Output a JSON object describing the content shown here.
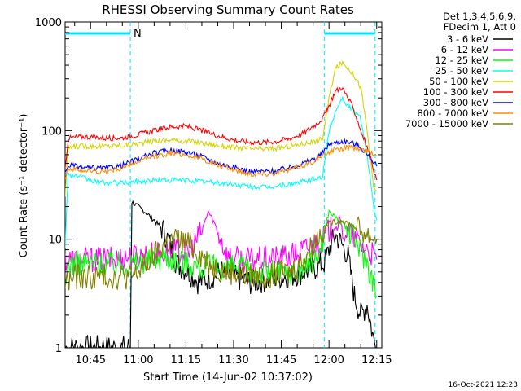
{
  "chart_data": {
    "type": "line",
    "title": "RHESSI Observing Summary Count Rates",
    "xlabel": "Start Time (14-Jun-02 10:37:02)",
    "ylabel": "Count Rate (s⁻¹ detector⁻¹)",
    "y_scale": "log",
    "ylim": [
      1,
      1000
    ],
    "xlim_minutes": [
      637.0,
      736.6
    ],
    "x_ticks": [
      {
        "label": "10:45",
        "minutes": 645
      },
      {
        "label": "11:00",
        "minutes": 660
      },
      {
        "label": "11:15",
        "minutes": 675
      },
      {
        "label": "11:30",
        "minutes": 690
      },
      {
        "label": "11:45",
        "minutes": 705
      },
      {
        "label": "12:00",
        "minutes": 720
      },
      {
        "label": "12:15",
        "minutes": 735
      }
    ],
    "y_ticks": [
      {
        "label": "1",
        "value": 1
      },
      {
        "label": "10",
        "value": 10
      },
      {
        "label": "100",
        "value": 100
      },
      {
        "label": "1000",
        "value": 1000
      }
    ],
    "legend_header": [
      "Det 1,3,4,5,6,9,",
      "FDecim 1, Att 0"
    ],
    "legend_placement": "right",
    "flag_bar": {
      "color": "#00e5ff",
      "segments": [
        [
          637.0,
          657.5
        ],
        [
          718.5,
          734.5
        ]
      ],
      "label": "N",
      "label_minutes": 658.5,
      "dashed_minutes": [
        657.5,
        718.5,
        734.5
      ]
    },
    "series": [
      {
        "name": "3 - 6 keV",
        "color": "#000000",
        "points": [
          [
            637,
            1
          ],
          [
            657.5,
            1
          ],
          [
            658,
            22
          ],
          [
            662,
            18
          ],
          [
            665,
            15
          ],
          [
            668,
            12
          ],
          [
            670,
            9
          ],
          [
            672,
            6
          ],
          [
            676,
            5
          ],
          [
            679,
            4
          ],
          [
            683,
            4.5
          ],
          [
            686,
            5
          ],
          [
            690,
            4.5
          ],
          [
            695,
            4
          ],
          [
            700,
            4.2
          ],
          [
            704,
            4.5
          ],
          [
            708,
            4.6
          ],
          [
            712,
            5
          ],
          [
            716,
            5.5
          ],
          [
            718.5,
            6
          ],
          [
            720,
            8
          ],
          [
            722,
            11
          ],
          [
            724,
            9
          ],
          [
            726,
            7
          ],
          [
            728,
            3
          ],
          [
            730,
            2
          ],
          [
            732,
            2.5
          ],
          [
            734,
            1.2
          ],
          [
            735,
            1
          ]
        ]
      },
      {
        "name": "6 - 12 keV",
        "color": "#ff00ff",
        "points": [
          [
            637,
            6.5
          ],
          [
            645,
            6.5
          ],
          [
            652,
            6.5
          ],
          [
            658,
            7
          ],
          [
            663,
            7.2
          ],
          [
            668,
            7.5
          ],
          [
            672,
            7.8
          ],
          [
            676,
            7.5
          ],
          [
            680,
            12
          ],
          [
            682,
            18
          ],
          [
            684,
            14
          ],
          [
            686,
            10
          ],
          [
            688,
            7
          ],
          [
            692,
            6.5
          ],
          [
            700,
            6.5
          ],
          [
            708,
            7
          ],
          [
            714,
            8.5
          ],
          [
            718,
            10
          ],
          [
            720,
            12
          ],
          [
            722,
            13
          ],
          [
            724,
            12
          ],
          [
            727,
            11
          ],
          [
            730,
            9
          ],
          [
            733,
            7.5
          ],
          [
            735,
            6.5
          ]
        ]
      },
      {
        "name": "12 - 25 keV",
        "color": "#00ff00",
        "points": [
          [
            637,
            3
          ],
          [
            638,
            6
          ],
          [
            645,
            6
          ],
          [
            652,
            6
          ],
          [
            658,
            6
          ],
          [
            664,
            6.5
          ],
          [
            668,
            7
          ],
          [
            672,
            6.5
          ],
          [
            676,
            6
          ],
          [
            680,
            5.5
          ],
          [
            684,
            5.5
          ],
          [
            688,
            5.5
          ],
          [
            692,
            5.5
          ],
          [
            696,
            5
          ],
          [
            700,
            5
          ],
          [
            704,
            5
          ],
          [
            708,
            5
          ],
          [
            712,
            5.5
          ],
          [
            716,
            6.5
          ],
          [
            718,
            10
          ],
          [
            720,
            18
          ],
          [
            722,
            16
          ],
          [
            724,
            14
          ],
          [
            726,
            12
          ],
          [
            728,
            10
          ],
          [
            730,
            8
          ],
          [
            732,
            6
          ],
          [
            734,
            4
          ],
          [
            735,
            3
          ]
        ]
      },
      {
        "name": "25 - 50 keV",
        "color": "#00ffff",
        "points": [
          [
            637,
            10
          ],
          [
            638,
            40
          ],
          [
            642,
            37
          ],
          [
            646,
            34
          ],
          [
            650,
            33
          ],
          [
            655,
            33
          ],
          [
            660,
            34
          ],
          [
            665,
            35
          ],
          [
            670,
            35
          ],
          [
            675,
            35
          ],
          [
            680,
            34
          ],
          [
            685,
            33
          ],
          [
            690,
            32
          ],
          [
            695,
            30.5
          ],
          [
            700,
            30
          ],
          [
            704,
            31
          ],
          [
            708,
            32
          ],
          [
            712,
            34
          ],
          [
            716,
            36
          ],
          [
            718,
            38
          ],
          [
            720,
            100
          ],
          [
            722,
            150
          ],
          [
            724,
            200
          ],
          [
            726,
            170
          ],
          [
            728,
            150
          ],
          [
            730,
            130
          ],
          [
            732,
            60
          ],
          [
            734,
            20
          ],
          [
            735,
            15
          ]
        ]
      },
      {
        "name": "50 - 100 keV",
        "color": "#d4d400",
        "points": [
          [
            637,
            25
          ],
          [
            638,
            70
          ],
          [
            642,
            72
          ],
          [
            646,
            72
          ],
          [
            650,
            72
          ],
          [
            655,
            73
          ],
          [
            660,
            76
          ],
          [
            665,
            80
          ],
          [
            670,
            82
          ],
          [
            675,
            80
          ],
          [
            680,
            77
          ],
          [
            685,
            73
          ],
          [
            690,
            70
          ],
          [
            695,
            68
          ],
          [
            700,
            68
          ],
          [
            704,
            69
          ],
          [
            708,
            72
          ],
          [
            712,
            76
          ],
          [
            716,
            80
          ],
          [
            718,
            85
          ],
          [
            720,
            200
          ],
          [
            722,
            370
          ],
          [
            724,
            420
          ],
          [
            726,
            380
          ],
          [
            728,
            320
          ],
          [
            730,
            250
          ],
          [
            732,
            100
          ],
          [
            734,
            30
          ],
          [
            735,
            28
          ]
        ]
      },
      {
        "name": "100 - 300 keV",
        "color": "#ff0000",
        "points": [
          [
            637,
            45
          ],
          [
            638,
            85
          ],
          [
            642,
            88
          ],
          [
            646,
            87
          ],
          [
            650,
            85
          ],
          [
            655,
            86
          ],
          [
            660,
            92
          ],
          [
            665,
            100
          ],
          [
            670,
            108
          ],
          [
            673,
            110
          ],
          [
            676,
            108
          ],
          [
            680,
            100
          ],
          [
            685,
            90
          ],
          [
            690,
            82
          ],
          [
            695,
            78
          ],
          [
            700,
            78
          ],
          [
            704,
            80
          ],
          [
            708,
            85
          ],
          [
            712,
            95
          ],
          [
            716,
            115
          ],
          [
            718,
            130
          ],
          [
            720,
            170
          ],
          [
            722,
            230
          ],
          [
            724,
            250
          ],
          [
            726,
            200
          ],
          [
            728,
            150
          ],
          [
            730,
            100
          ],
          [
            732,
            70
          ],
          [
            734,
            45
          ],
          [
            735,
            35
          ]
        ]
      },
      {
        "name": "300 - 800 keV",
        "color": "#0000ff",
        "points": [
          [
            637,
            40
          ],
          [
            638,
            48
          ],
          [
            642,
            46
          ],
          [
            646,
            45
          ],
          [
            650,
            45
          ],
          [
            655,
            48
          ],
          [
            660,
            55
          ],
          [
            665,
            62
          ],
          [
            670,
            66
          ],
          [
            675,
            64
          ],
          [
            680,
            58
          ],
          [
            685,
            50
          ],
          [
            690,
            46
          ],
          [
            695,
            42
          ],
          [
            700,
            42
          ],
          [
            704,
            43
          ],
          [
            708,
            46
          ],
          [
            712,
            50
          ],
          [
            716,
            56
          ],
          [
            718,
            62
          ],
          [
            720,
            75
          ],
          [
            724,
            80
          ],
          [
            727,
            78
          ],
          [
            730,
            70
          ],
          [
            732,
            60
          ],
          [
            734,
            52
          ],
          [
            735,
            47
          ]
        ]
      },
      {
        "name": "800 - 7000 keV",
        "color": "#ff8c00",
        "points": [
          [
            637,
            38
          ],
          [
            638,
            45
          ],
          [
            642,
            43
          ],
          [
            646,
            42
          ],
          [
            650,
            42
          ],
          [
            655,
            45
          ],
          [
            660,
            52
          ],
          [
            665,
            58
          ],
          [
            670,
            62
          ],
          [
            675,
            60
          ],
          [
            680,
            55
          ],
          [
            685,
            48
          ],
          [
            690,
            44
          ],
          [
            695,
            40
          ],
          [
            700,
            40
          ],
          [
            704,
            41
          ],
          [
            708,
            44
          ],
          [
            712,
            48
          ],
          [
            716,
            54
          ],
          [
            718,
            58
          ],
          [
            720,
            64
          ],
          [
            724,
            68
          ],
          [
            727,
            70
          ],
          [
            730,
            67
          ],
          [
            732,
            64
          ],
          [
            734,
            61
          ],
          [
            735,
            58
          ]
        ]
      },
      {
        "name": "7000 - 15000 keV",
        "color": "#808000",
        "points": [
          [
            637,
            4
          ],
          [
            640,
            4.5
          ],
          [
            645,
            4.5
          ],
          [
            650,
            4.5
          ],
          [
            655,
            4.5
          ],
          [
            658,
            4.5
          ],
          [
            660,
            5
          ],
          [
            664,
            6.5
          ],
          [
            668,
            9
          ],
          [
            672,
            10
          ],
          [
            676,
            9
          ],
          [
            680,
            7
          ],
          [
            684,
            5.5
          ],
          [
            688,
            5
          ],
          [
            692,
            4.8
          ],
          [
            696,
            4.6
          ],
          [
            700,
            4.6
          ],
          [
            704,
            4.8
          ],
          [
            708,
            5
          ],
          [
            712,
            6.5
          ],
          [
            716,
            10
          ],
          [
            718,
            12
          ],
          [
            720,
            14
          ],
          [
            724,
            15
          ],
          [
            728,
            13
          ],
          [
            732,
            11
          ],
          [
            735,
            10
          ]
        ]
      }
    ]
  },
  "timestamp": "16-Oct-2021 12:23"
}
